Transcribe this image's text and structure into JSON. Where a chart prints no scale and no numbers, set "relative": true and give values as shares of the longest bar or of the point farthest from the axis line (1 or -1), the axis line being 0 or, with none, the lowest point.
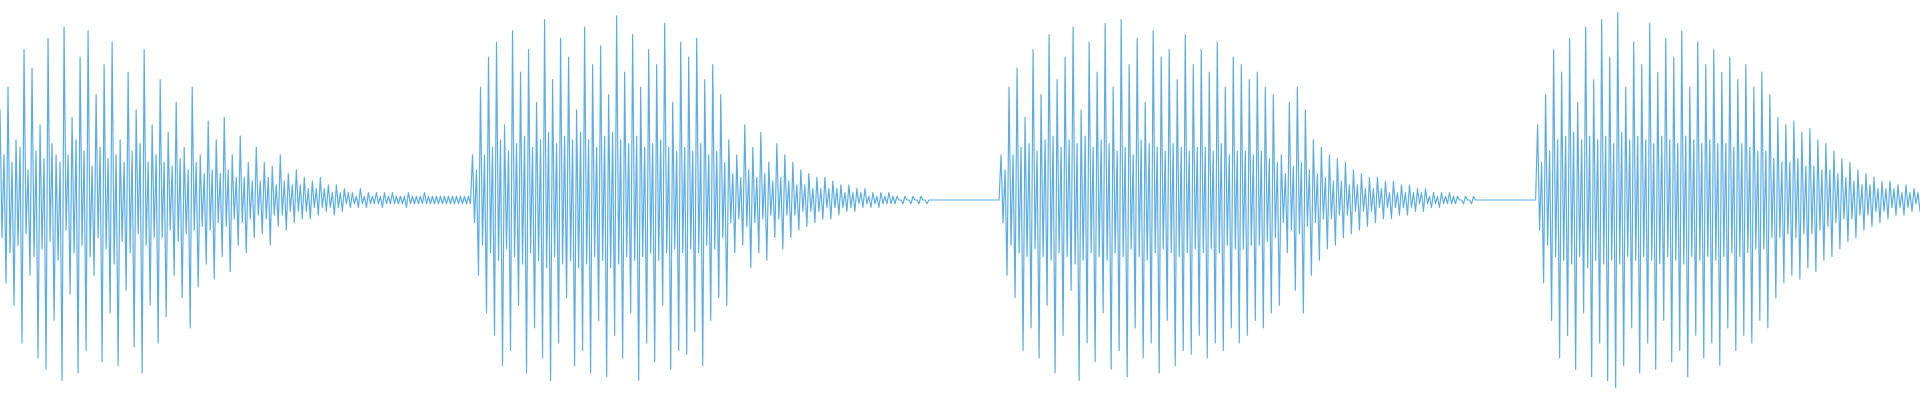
{
  "chart_data": {
    "type": "line",
    "relative": true,
    "marker": "none",
    "line_style": "solid",
    "categories": [
      null,
      null,
      null,
      null,
      null,
      null,
      null,
      null,
      null,
      null,
      null,
      null,
      null,
      null,
      null,
      null,
      null,
      null,
      null,
      null,
      null,
      null,
      null,
      null,
      null,
      null,
      null,
      null,
      null,
      null,
      null,
      null,
      null,
      null,
      null,
      null,
      null,
      null,
      null,
      null,
      null,
      null,
      null,
      null,
      null,
      null,
      null,
      null,
      null,
      null,
      null,
      null,
      null,
      null,
      null,
      null,
      null,
      null,
      null,
      null,
      null,
      null,
      null,
      null,
      null,
      null,
      null,
      null,
      null,
      null,
      null,
      null,
      null,
      null,
      null,
      null,
      null,
      null,
      null,
      null,
      null,
      null,
      null,
      null,
      null,
      null,
      null,
      null,
      null,
      null,
      null,
      null,
      null,
      null,
      null,
      null,
      null,
      null,
      null,
      null,
      null,
      null,
      null,
      null,
      null,
      null,
      null,
      null,
      null,
      null,
      null,
      null,
      null,
      null,
      null,
      null,
      null,
      null,
      null,
      null,
      null,
      null,
      null,
      null,
      null,
      null,
      null,
      null,
      null,
      null,
      null,
      null,
      null,
      null,
      null,
      null,
      null,
      null,
      null,
      null,
      null,
      null,
      null,
      null,
      null,
      null,
      null,
      null,
      null,
      null,
      null,
      null,
      null,
      null,
      null,
      null,
      null,
      null,
      null,
      null,
      null,
      null,
      null,
      null,
      null,
      null,
      null,
      null,
      null,
      null,
      null,
      null,
      null,
      null,
      null,
      null,
      null,
      null,
      null,
      null,
      null,
      null,
      null,
      null,
      null,
      null,
      null,
      null,
      null,
      null,
      null,
      null,
      null,
      null,
      null,
      null,
      null,
      null,
      null,
      null,
      null,
      null,
      null,
      null,
      null,
      null,
      null,
      null,
      null,
      null,
      null,
      null,
      null,
      null,
      null,
      null,
      null,
      null,
      null,
      null,
      null,
      null,
      null,
      null,
      null,
      null,
      null,
      null,
      null,
      null,
      null,
      null,
      null,
      null,
      null,
      null,
      null,
      null,
      null,
      null,
      null,
      null,
      null,
      null,
      null,
      null,
      null,
      null,
      null,
      null,
      null,
      null,
      null,
      null,
      null,
      null,
      null,
      null,
      null,
      null,
      null,
      null,
      null,
      null,
      null,
      null,
      null,
      null,
      null,
      null,
      null,
      null,
      null,
      null,
      null,
      null,
      null,
      null,
      null,
      null,
      null,
      null,
      null,
      null,
      null,
      null,
      null,
      null,
      null,
      null,
      null,
      null,
      null,
      null,
      null,
      null,
      null,
      null,
      null,
      null,
      null,
      null,
      null,
      null,
      null,
      null,
      null,
      null,
      null,
      null,
      null,
      null,
      null,
      null,
      null,
      null,
      null,
      null,
      null,
      null,
      null,
      null,
      null,
      null,
      null,
      null,
      null,
      null,
      null,
      null,
      null,
      null,
      null,
      null,
      null,
      null,
      null,
      null,
      null,
      null,
      null,
      null,
      null,
      null,
      null,
      null,
      null,
      null,
      null,
      null,
      null,
      null,
      null,
      null,
      null,
      null,
      null,
      null,
      null,
      null,
      null,
      null,
      null,
      null,
      null,
      null,
      null,
      null,
      null,
      null,
      null,
      null,
      null,
      null,
      null,
      null,
      null,
      null,
      null,
      null,
      null,
      null,
      null,
      null,
      null,
      null,
      null,
      null,
      null,
      null,
      null,
      null,
      null,
      null,
      null,
      null,
      null,
      null,
      null,
      null,
      null,
      null,
      null,
      null,
      null,
      null,
      null,
      null,
      null,
      null,
      null,
      null,
      null,
      null,
      null,
      null,
      null,
      null,
      null,
      null,
      null,
      null,
      null,
      null,
      null,
      null,
      null,
      null,
      null,
      null,
      null,
      null,
      null,
      null,
      null,
      null,
      null,
      null,
      null,
      null,
      null,
      null,
      null,
      null,
      null,
      null,
      null,
      null,
      null,
      null,
      null,
      null,
      null,
      null,
      null,
      null,
      null,
      null,
      null,
      null,
      null,
      null,
      null,
      null,
      null,
      null,
      null,
      null,
      null,
      null,
      null,
      null,
      null,
      null,
      null,
      null,
      null,
      null,
      null,
      null,
      null,
      null,
      null,
      null,
      null,
      null,
      null,
      null,
      null,
      null,
      null,
      null,
      null,
      null,
      null,
      null,
      null,
      null,
      null,
      null,
      null,
      null,
      null,
      null,
      null,
      null,
      null,
      null,
      null,
      null,
      null,
      null,
      null,
      null,
      null,
      null,
      null,
      null,
      null,
      null,
      null,
      null,
      null,
      null,
      null,
      null,
      null,
      null,
      null,
      null,
      null,
      null,
      null,
      null,
      null,
      null,
      null,
      null,
      null,
      null,
      null,
      null,
      null,
      null,
      null,
      null,
      null,
      null,
      null,
      null,
      null,
      null,
      null,
      null,
      null,
      null,
      null,
      null,
      null,
      null,
      null,
      null,
      null,
      null,
      null,
      null,
      null,
      null,
      null,
      null,
      null,
      null,
      null,
      null,
      null,
      null,
      null,
      null,
      null,
      null,
      null,
      null,
      null,
      null,
      null,
      null,
      null,
      null,
      null,
      null,
      null,
      null,
      null,
      null,
      null,
      null,
      null,
      null,
      null,
      null,
      null,
      null,
      null,
      null,
      null,
      null,
      null,
      null,
      null,
      null,
      null,
      null,
      null,
      null,
      null,
      null,
      null,
      null,
      null,
      null,
      null,
      null,
      null,
      null,
      null,
      null,
      null,
      null,
      null,
      null,
      null,
      null,
      null,
      null,
      null,
      null,
      null,
      null,
      null,
      null,
      null,
      null,
      null,
      null,
      null,
      null,
      null,
      null,
      null,
      null,
      null,
      null,
      null,
      null,
      null,
      null,
      null,
      null,
      null,
      null,
      null,
      null,
      null,
      null,
      null,
      null,
      null,
      null,
      null,
      null,
      null,
      null,
      null,
      null,
      null,
      null,
      null,
      null,
      null,
      null,
      null,
      null,
      null,
      null,
      null,
      null,
      null,
      null,
      null,
      null,
      null,
      null,
      null,
      null,
      null,
      null,
      null,
      null,
      null,
      null,
      null,
      null,
      null,
      null,
      null,
      null,
      null,
      null,
      null,
      null,
      null,
      null,
      null,
      null,
      null,
      null,
      null,
      null,
      null,
      null,
      null,
      null,
      null,
      null,
      null,
      null,
      null,
      null,
      null,
      null,
      null,
      null,
      null,
      null,
      null,
      null,
      null,
      null,
      null,
      null,
      null,
      null,
      null,
      null,
      null,
      null,
      null,
      null,
      null,
      null,
      null,
      null,
      null,
      null,
      null,
      null,
      null,
      null,
      null,
      null,
      null,
      null,
      null,
      null,
      null,
      null,
      null,
      null,
      null,
      null,
      null,
      null,
      null,
      null,
      null,
      null,
      null,
      null,
      null,
      null,
      null,
      null,
      null,
      null,
      null,
      null,
      null,
      null,
      null,
      null,
      null,
      null,
      null,
      null,
      null,
      null,
      null,
      null,
      null,
      null,
      null,
      null,
      null,
      null,
      null,
      null,
      null,
      null,
      null,
      null,
      null,
      null,
      null,
      null,
      null,
      null,
      null,
      null,
      null,
      null,
      null,
      null,
      null,
      null,
      null,
      null,
      null,
      null,
      null,
      null,
      null,
      null,
      null,
      null,
      null,
      null,
      null,
      null,
      null,
      null,
      null,
      null,
      null,
      null,
      null,
      null,
      null,
      null,
      null,
      null,
      null,
      null,
      null,
      null,
      null,
      null,
      null,
      null,
      null,
      null,
      null,
      null,
      null,
      null,
      null,
      null,
      null,
      null,
      null,
      null,
      null,
      null,
      null,
      null,
      null,
      null,
      null,
      null,
      null,
      null,
      null,
      null,
      null,
      null,
      null,
      null,
      null,
      null,
      null,
      null,
      null,
      null,
      null,
      null,
      null,
      null,
      null,
      null,
      null,
      null,
      null,
      null,
      null,
      null,
      null,
      null,
      null,
      null,
      null,
      null,
      null,
      null,
      null,
      null,
      null,
      null,
      null,
      null,
      null,
      null,
      null,
      null,
      null,
      null,
      null,
      null,
      null,
      null,
      null,
      null,
      null,
      null,
      null,
      null,
      null,
      null,
      null,
      null,
      null,
      null,
      null,
      null,
      null,
      null,
      null,
      null,
      null,
      null,
      null,
      null,
      null,
      null,
      null,
      null,
      null,
      null,
      null,
      null,
      null,
      null
    ],
    "series": [
      {
        "color": "#5dade2",
        "values": [
          0.74,
          0.4,
          0.62,
          0.28,
          0.8,
          0.36,
          0.6,
          0.22,
          0.66,
          0.38,
          0.64,
          0.12,
          0.9,
          0.41,
          0.58,
          0.3,
          0.85,
          0.35,
          0.63,
          0.08,
          0.7,
          0.37,
          0.61,
          0.05,
          0.93,
          0.39,
          0.65,
          0.18,
          0.62,
          0.34,
          0.6,
          0.02,
          0.96,
          0.42,
          0.62,
          0.25,
          0.72,
          0.36,
          0.66,
          0.04,
          0.88,
          0.38,
          0.63,
          0.1,
          0.95,
          0.35,
          0.59,
          0.3,
          0.78,
          0.4,
          0.64,
          0.07,
          0.86,
          0.37,
          0.61,
          0.2,
          0.92,
          0.33,
          0.62,
          0.06,
          0.66,
          0.39,
          0.6,
          0.26,
          0.84,
          0.36,
          0.63,
          0.11,
          0.74,
          0.41,
          0.65,
          0.04,
          0.9,
          0.38,
          0.6,
          0.22,
          0.7,
          0.4,
          0.62,
          0.12,
          0.82,
          0.4,
          0.6,
          0.19,
          0.68,
          0.42,
          0.59,
          0.3,
          0.76,
          0.39,
          0.61,
          0.24,
          0.64,
          0.41,
          0.58,
          0.16,
          0.8,
          0.42,
          0.6,
          0.27,
          0.62,
          0.43,
          0.57,
          0.33,
          0.71,
          0.42,
          0.58,
          0.29,
          0.66,
          0.44,
          0.57,
          0.35,
          0.72,
          0.43,
          0.58,
          0.31,
          0.62,
          0.45,
          0.56,
          0.38,
          0.67,
          0.44,
          0.56,
          0.36,
          0.6,
          0.45,
          0.55,
          0.4,
          0.64,
          0.46,
          0.55,
          0.41,
          0.6,
          0.45,
          0.56,
          0.38,
          0.59,
          0.46,
          0.54,
          0.43,
          0.62,
          0.46,
          0.55,
          0.42,
          0.57,
          0.47,
          0.54,
          0.44,
          0.58,
          0.47,
          0.54,
          0.45,
          0.56,
          0.47,
          0.53,
          0.45,
          0.55,
          0.48,
          0.53,
          0.46,
          0.56,
          0.48,
          0.53,
          0.47,
          0.54,
          0.48,
          0.52,
          0.46,
          0.54,
          0.48,
          0.52,
          0.47,
          0.53,
          0.49,
          0.52,
          0.48,
          0.52,
          0.49,
          0.51,
          0.48,
          0.53,
          0.49,
          0.51,
          0.48,
          0.52,
          0.49,
          0.51,
          0.49,
          0.52,
          0.49,
          0.51,
          0.48,
          0.52,
          0.49,
          0.51,
          0.49,
          0.52,
          0.49,
          0.51,
          0.49,
          0.51,
          0.49,
          0.51,
          0.48,
          0.52,
          0.49,
          0.51,
          0.49,
          0.51,
          0.49,
          0.51,
          0.49,
          0.52,
          0.49,
          0.51,
          0.49,
          0.51,
          0.49,
          0.51,
          0.49,
          0.51,
          0.49,
          0.51,
          0.49,
          0.51,
          0.49,
          0.51,
          0.49,
          0.51,
          0.49,
          0.51,
          0.49,
          0.51,
          0.49,
          0.51,
          0.49,
          0.62,
          0.44,
          0.58,
          0.3,
          0.8,
          0.38,
          0.62,
          0.2,
          0.88,
          0.36,
          0.64,
          0.14,
          0.92,
          0.34,
          0.66,
          0.06,
          0.7,
          0.37,
          0.63,
          0.1,
          0.95,
          0.35,
          0.65,
          0.22,
          0.84,
          0.33,
          0.67,
          0.04,
          0.9,
          0.36,
          0.64,
          0.16,
          0.76,
          0.34,
          0.66,
          0.08,
          0.98,
          0.32,
          0.68,
          0.02,
          0.82,
          0.35,
          0.65,
          0.12,
          0.93,
          0.33,
          0.67,
          0.24,
          0.88,
          0.34,
          0.66,
          0.06,
          0.74,
          0.32,
          0.68,
          0.1,
          0.96,
          0.33,
          0.66,
          0.04,
          0.86,
          0.35,
          0.64,
          0.18,
          0.91,
          0.34,
          0.67,
          0.03,
          0.78,
          0.32,
          0.68,
          0.14,
          0.99,
          0.33,
          0.66,
          0.08,
          0.84,
          0.35,
          0.65,
          0.2,
          0.94,
          0.34,
          0.67,
          0.02,
          0.8,
          0.35,
          0.64,
          0.12,
          0.9,
          0.36,
          0.65,
          0.07,
          0.86,
          0.34,
          0.66,
          0.22,
          0.97,
          0.36,
          0.64,
          0.05,
          0.76,
          0.37,
          0.63,
          0.1,
          0.92,
          0.36,
          0.64,
          0.09,
          0.88,
          0.37,
          0.63,
          0.15,
          0.93,
          0.36,
          0.65,
          0.06,
          0.82,
          0.38,
          0.62,
          0.18,
          0.86,
          0.37,
          0.63,
          0.24,
          0.78,
          0.4,
          0.6,
          0.22,
          0.66,
          0.44,
          0.57,
          0.36,
          0.62,
          0.45,
          0.56,
          0.38,
          0.7,
          0.43,
          0.58,
          0.32,
          0.64,
          0.44,
          0.56,
          0.36,
          0.68,
          0.45,
          0.57,
          0.34,
          0.6,
          0.46,
          0.55,
          0.4,
          0.65,
          0.45,
          0.56,
          0.37,
          0.62,
          0.46,
          0.55,
          0.4,
          0.6,
          0.46,
          0.54,
          0.42,
          0.58,
          0.47,
          0.54,
          0.43,
          0.57,
          0.47,
          0.53,
          0.44,
          0.56,
          0.47,
          0.53,
          0.45,
          0.56,
          0.48,
          0.53,
          0.45,
          0.55,
          0.48,
          0.53,
          0.46,
          0.54,
          0.48,
          0.52,
          0.47,
          0.54,
          0.48,
          0.52,
          0.47,
          0.53,
          0.49,
          0.52,
          0.48,
          0.53,
          0.49,
          0.51,
          0.48,
          0.52,
          0.49,
          0.51,
          0.48,
          0.52,
          0.49,
          0.51,
          0.49,
          0.52,
          0.49,
          0.51,
          0.49,
          0.51,
          0.5,
          0.5,
          0.49,
          0.51,
          0.5,
          0.5,
          0.49,
          0.51,
          0.5,
          0.5,
          0.49,
          0.51,
          0.5,
          0.5,
          0.49,
          0.5,
          0.5,
          0.5,
          0.5,
          0.5,
          0.5,
          0.5,
          0.5,
          0.5,
          0.5,
          0.5,
          0.5,
          0.5,
          0.5,
          0.5,
          0.5,
          0.5,
          0.5,
          0.5,
          0.5,
          0.5,
          0.5,
          0.5,
          0.5,
          0.5,
          0.5,
          0.5,
          0.5,
          0.5,
          0.5,
          0.5,
          0.5,
          0.5,
          0.5,
          0.5,
          0.5,
          0.62,
          0.44,
          0.58,
          0.3,
          0.8,
          0.38,
          0.62,
          0.24,
          0.85,
          0.36,
          0.64,
          0.1,
          0.72,
          0.35,
          0.65,
          0.16,
          0.9,
          0.37,
          0.63,
          0.08,
          0.78,
          0.35,
          0.66,
          0.22,
          0.94,
          0.34,
          0.67,
          0.04,
          0.82,
          0.36,
          0.64,
          0.14,
          0.88,
          0.35,
          0.66,
          0.26,
          0.96,
          0.33,
          0.65,
          0.02,
          0.74,
          0.34,
          0.67,
          0.12,
          0.92,
          0.36,
          0.64,
          0.07,
          0.84,
          0.35,
          0.66,
          0.2,
          0.97,
          0.34,
          0.65,
          0.05,
          0.8,
          0.36,
          0.63,
          0.1,
          0.98,
          0.35,
          0.64,
          0.03,
          0.86,
          0.37,
          0.62,
          0.16,
          0.93,
          0.35,
          0.66,
          0.08,
          0.76,
          0.34,
          0.65,
          0.12,
          0.95,
          0.36,
          0.64,
          0.04,
          0.88,
          0.37,
          0.63,
          0.18,
          0.9,
          0.36,
          0.65,
          0.06,
          0.82,
          0.35,
          0.64,
          0.1,
          0.94,
          0.36,
          0.63,
          0.09,
          0.86,
          0.37,
          0.64,
          0.14,
          0.9,
          0.36,
          0.64,
          0.08,
          0.84,
          0.37,
          0.63,
          0.12,
          0.92,
          0.36,
          0.65,
          0.1,
          0.8,
          0.38,
          0.62,
          0.16,
          0.88,
          0.37,
          0.63,
          0.12,
          0.86,
          0.37,
          0.63,
          0.14,
          0.82,
          0.38,
          0.62,
          0.18,
          0.84,
          0.38,
          0.63,
          0.16,
          0.8,
          0.39,
          0.61,
          0.2,
          0.78,
          0.4,
          0.6,
          0.22,
          0.62,
          0.44,
          0.57,
          0.36,
          0.76,
          0.42,
          0.59,
          0.26,
          0.8,
          0.41,
          0.6,
          0.2,
          0.74,
          0.43,
          0.58,
          0.3,
          0.66,
          0.44,
          0.57,
          0.34,
          0.64,
          0.45,
          0.56,
          0.37,
          0.62,
          0.45,
          0.55,
          0.38,
          0.61,
          0.46,
          0.55,
          0.4,
          0.6,
          0.46,
          0.54,
          0.41,
          0.58,
          0.47,
          0.54,
          0.42,
          0.57,
          0.47,
          0.53,
          0.43,
          0.56,
          0.47,
          0.53,
          0.44,
          0.56,
          0.48,
          0.53,
          0.45,
          0.55,
          0.48,
          0.52,
          0.45,
          0.55,
          0.48,
          0.52,
          0.46,
          0.54,
          0.48,
          0.52,
          0.46,
          0.54,
          0.48,
          0.52,
          0.47,
          0.53,
          0.49,
          0.52,
          0.47,
          0.53,
          0.49,
          0.51,
          0.48,
          0.52,
          0.49,
          0.51,
          0.48,
          0.52,
          0.49,
          0.51,
          0.49,
          0.52,
          0.49,
          0.51,
          0.49,
          0.51,
          0.5,
          0.5,
          0.49,
          0.51,
          0.5,
          0.5,
          0.49,
          0.51,
          0.5,
          0.5,
          0.5,
          0.5,
          0.5,
          0.5,
          0.5,
          0.5,
          0.5,
          0.5,
          0.5,
          0.5,
          0.5,
          0.5,
          0.5,
          0.5,
          0.5,
          0.5,
          0.5,
          0.5,
          0.5,
          0.5,
          0.5,
          0.5,
          0.5,
          0.5,
          0.5,
          0.5,
          0.5,
          0.5,
          0.5,
          0.7,
          0.42,
          0.6,
          0.28,
          0.78,
          0.38,
          0.63,
          0.18,
          0.9,
          0.35,
          0.66,
          0.08,
          0.84,
          0.34,
          0.67,
          0.14,
          0.93,
          0.33,
          0.68,
          0.05,
          0.76,
          0.35,
          0.66,
          0.2,
          0.96,
          0.32,
          0.67,
          0.03,
          0.82,
          0.34,
          0.66,
          0.12,
          0.98,
          0.33,
          0.67,
          0.02,
          0.88,
          0.34,
          0.65,
          0.0,
          1.0,
          0.33,
          0.68,
          0.06,
          0.8,
          0.35,
          0.66,
          0.16,
          0.92,
          0.34,
          0.67,
          0.04,
          0.86,
          0.35,
          0.66,
          0.12,
          0.97,
          0.34,
          0.65,
          0.05,
          0.84,
          0.33,
          0.67,
          0.18,
          0.93,
          0.35,
          0.66,
          0.07,
          0.88,
          0.34,
          0.65,
          0.1,
          0.95,
          0.33,
          0.67,
          0.03,
          0.8,
          0.35,
          0.66,
          0.14,
          0.92,
          0.34,
          0.65,
          0.08,
          0.86,
          0.35,
          0.66,
          0.12,
          0.9,
          0.34,
          0.65,
          0.06,
          0.84,
          0.35,
          0.65,
          0.16,
          0.88,
          0.36,
          0.64,
          0.1,
          0.82,
          0.35,
          0.65,
          0.14,
          0.86,
          0.36,
          0.64,
          0.12,
          0.8,
          0.37,
          0.63,
          0.18,
          0.84,
          0.37,
          0.63,
          0.16,
          0.78,
          0.4,
          0.61,
          0.24,
          0.72,
          0.4,
          0.6,
          0.28,
          0.7,
          0.41,
          0.6,
          0.3,
          0.71,
          0.4,
          0.61,
          0.29,
          0.68,
          0.41,
          0.59,
          0.32,
          0.69,
          0.41,
          0.59,
          0.31,
          0.66,
          0.42,
          0.58,
          0.34,
          0.65,
          0.43,
          0.58,
          0.35,
          0.63,
          0.44,
          0.57,
          0.37,
          0.61,
          0.45,
          0.56,
          0.39,
          0.6,
          0.45,
          0.55,
          0.4,
          0.58,
          0.46,
          0.54,
          0.42,
          0.57,
          0.46,
          0.54,
          0.43,
          0.56,
          0.47,
          0.53,
          0.44,
          0.55,
          0.47,
          0.53,
          0.45,
          0.55,
          0.48,
          0.53,
          0.46,
          0.54,
          0.48,
          0.52,
          0.46,
          0.54,
          0.48,
          0.52,
          0.47,
          0.53,
          0.49,
          0.52,
          0.47
        ]
      }
    ]
  }
}
